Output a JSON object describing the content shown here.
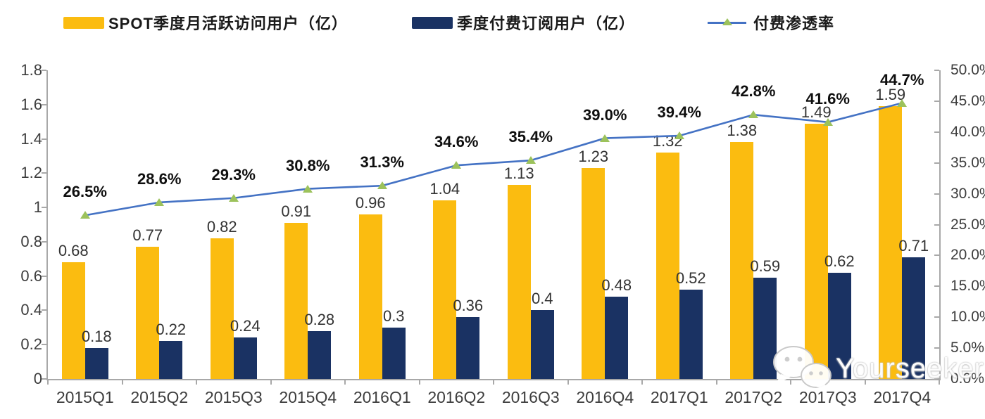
{
  "legend": {
    "items": [
      {
        "label": "SPOT季度月活跃访问用户（亿）",
        "swatch": "bar",
        "color": "#FBBC10"
      },
      {
        "label": "季度付费订阅用户（亿）",
        "swatch": "bar",
        "color": "#1A3263"
      },
      {
        "label": "付费渗透率",
        "swatch": "line",
        "line_color": "#4472C4",
        "marker_color": "#9CC25B"
      }
    ]
  },
  "watermark": {
    "text": "Yourseeker",
    "icon": "wechat-icon"
  },
  "chart_data": {
    "type": "combo-bar-line",
    "title": "",
    "grid": false,
    "legend_position": "top",
    "categories": [
      "2015Q1",
      "2015Q2",
      "2015Q3",
      "2015Q4",
      "2016Q1",
      "2016Q2",
      "2016Q3",
      "2016Q4",
      "2017Q1",
      "2017Q2",
      "2017Q3",
      "2017Q4"
    ],
    "series": [
      {
        "name": "SPOT季度月活跃访问用户（亿）",
        "type": "bar",
        "axis": "left",
        "color": "#FBBC10",
        "values": [
          0.68,
          0.77,
          0.82,
          0.91,
          0.96,
          1.04,
          1.13,
          1.23,
          1.32,
          1.38,
          1.49,
          1.59
        ],
        "labels": [
          "0.68",
          "0.77",
          "0.82",
          "0.91",
          "0.96",
          "1.04",
          "1.13",
          "1.23",
          "1.32",
          "1.38",
          "1.49",
          "1.59"
        ]
      },
      {
        "name": "季度付费订阅用户（亿）",
        "type": "bar",
        "axis": "left",
        "color": "#1A3263",
        "values": [
          0.18,
          0.22,
          0.24,
          0.28,
          0.3,
          0.36,
          0.4,
          0.48,
          0.52,
          0.59,
          0.62,
          0.71
        ],
        "labels": [
          "0.18",
          "0.22",
          "0.24",
          "0.28",
          "0.3",
          "0.36",
          "0.4",
          "0.48",
          "0.52",
          "0.59",
          "0.62",
          "0.71"
        ]
      },
      {
        "name": "付费渗透率",
        "type": "line",
        "axis": "right",
        "color": "#4472C4",
        "marker_color": "#9CC25B",
        "values": [
          26.5,
          28.6,
          29.3,
          30.8,
          31.3,
          34.6,
          35.4,
          39.0,
          39.4,
          42.8,
          41.6,
          44.7
        ],
        "labels": [
          "26.5%",
          "28.6%",
          "29.3%",
          "30.8%",
          "31.3%",
          "34.6%",
          "35.4%",
          "39.0%",
          "39.4%",
          "42.8%",
          "41.6%",
          "44.7%"
        ]
      }
    ],
    "left_axis": {
      "min": 0,
      "max": 1.8,
      "step": 0.2,
      "ticks": [
        "0",
        "0.2",
        "0.4",
        "0.6",
        "0.8",
        "1",
        "1.2",
        "1.4",
        "1.6",
        "1.8"
      ]
    },
    "right_axis": {
      "min": 0,
      "max": 50,
      "step": 5,
      "ticks": [
        "0.0%",
        "5.0%",
        "10.0%",
        "15.0%",
        "20.0%",
        "25.0%",
        "30.0%",
        "35.0%",
        "40.0%",
        "45.0%",
        "50.0%"
      ]
    }
  }
}
